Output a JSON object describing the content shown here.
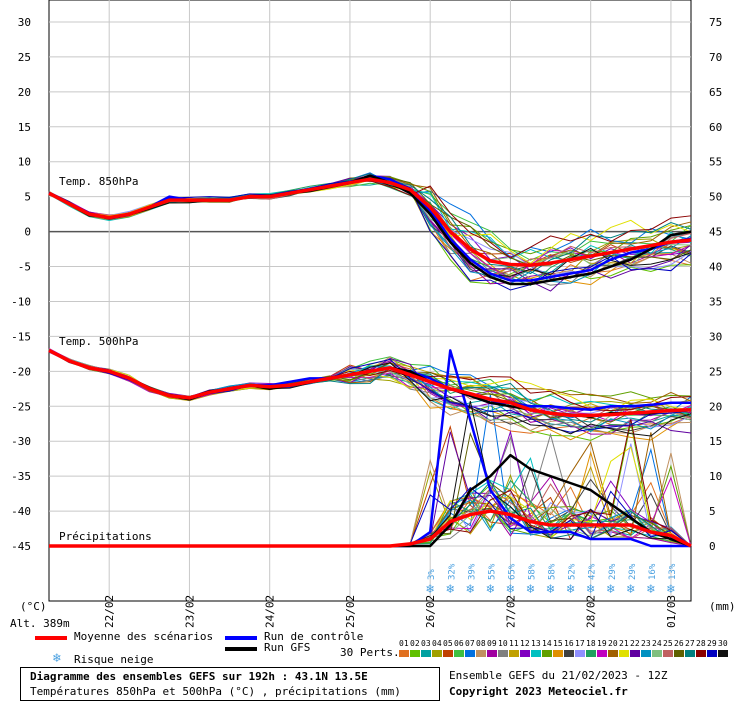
{
  "labels": {
    "temp850": "Temp. 850hPa",
    "temp500": "Temp. 500hPa",
    "precip": "Précipitations",
    "unit_left": "(°C)",
    "unit_right": "(mm)",
    "altitude": "Alt. 389m",
    "perts": "30 Perts."
  },
  "legend": {
    "mean": "Moyenne des scénarios",
    "control": "Run de contrôle",
    "gfs": "Run GFS",
    "snow": "Risque neige",
    "mean_color": "#ff0000",
    "control_color": "#0000ff",
    "gfs_color": "#000000"
  },
  "perturbations": {
    "numbers": [
      "01",
      "02",
      "03",
      "04",
      "05",
      "06",
      "07",
      "08",
      "09",
      "10",
      "11",
      "12",
      "13",
      "14",
      "15",
      "16",
      "17",
      "18",
      "19",
      "20",
      "21",
      "22",
      "23",
      "24",
      "25",
      "26",
      "27",
      "28",
      "29",
      "30"
    ],
    "colors": [
      "#e07020",
      "#60c000",
      "#00a0a0",
      "#a0a000",
      "#c04000",
      "#40c040",
      "#0070e0",
      "#c09060",
      "#a000a0",
      "#808080",
      "#c0a000",
      "#8000c0",
      "#00c0c0",
      "#60a000",
      "#e09000",
      "#404040",
      "#9090ff",
      "#20a060",
      "#c000c0",
      "#a06000",
      "#e0e000",
      "#6000a0",
      "#0090c0",
      "#80c080",
      "#c06060",
      "#606000",
      "#008080",
      "#8b0000",
      "#0000c0",
      "#101010"
    ]
  },
  "footer": {
    "title": "Diagramme des ensembles GEFS sur 192h : 43.1N 13.5E",
    "subtitle": "Températures 850hPa et 500hPa (°C) , précipitations (mm)",
    "run": "Ensemble GEFS du 21/02/2023 - 12Z",
    "copyright": "Copyright 2023 Meteociel.fr"
  },
  "chart_data": {
    "type": "line",
    "x_ticks": [
      "22/02",
      "23/02",
      "24/02",
      "25/02",
      "26/02",
      "27/02",
      "28/02",
      "01/03"
    ],
    "x_tick_hours": [
      18,
      42,
      66,
      90,
      114,
      138,
      162,
      186
    ],
    "x_range_hours": [
      0,
      192
    ],
    "y_left_ticks": [
      30,
      25,
      20,
      15,
      10,
      5,
      0,
      -5,
      -10,
      -15,
      -20,
      -25,
      -30,
      -35,
      -40,
      -45
    ],
    "y_left_range": [
      -45,
      30
    ],
    "y_right_ticks": [
      75,
      70,
      65,
      60,
      55,
      50,
      45,
      40,
      35,
      30,
      25,
      20,
      15,
      10,
      5,
      0
    ],
    "y_right_range": [
      0,
      75
    ],
    "zero_line": 0,
    "hours": [
      0,
      6,
      12,
      18,
      24,
      30,
      36,
      42,
      48,
      54,
      60,
      66,
      72,
      78,
      84,
      90,
      96,
      102,
      108,
      114,
      120,
      126,
      132,
      138,
      144,
      150,
      156,
      162,
      168,
      174,
      180,
      186,
      192
    ],
    "series": [
      {
        "name": "Moyenne des scénarios",
        "group": "t850",
        "values": [
          5.5,
          4,
          2.5,
          2,
          2.5,
          3.5,
          4.5,
          4.5,
          4.5,
          4.5,
          5,
          5,
          5.5,
          6,
          6.5,
          7,
          7.5,
          7,
          6,
          3.5,
          0,
          -2.5,
          -4.2,
          -4.7,
          -4.8,
          -4.5,
          -4,
          -3.5,
          -3,
          -2.5,
          -2,
          -1.5,
          -1.2
        ]
      },
      {
        "name": "Run de contrôle",
        "group": "t850",
        "values": [
          5.5,
          4,
          2.5,
          2,
          2.5,
          3.5,
          5,
          4.5,
          4.5,
          4.5,
          5,
          5,
          5.5,
          6,
          6.5,
          7,
          8,
          7.5,
          6,
          3,
          -1,
          -4,
          -6,
          -7,
          -7,
          -6.5,
          -6,
          -5.5,
          -4,
          -3,
          -2.5,
          -1.5,
          -1
        ]
      },
      {
        "name": "Run GFS",
        "group": "t850",
        "values": [
          5.5,
          4,
          2.5,
          2,
          2.5,
          3.5,
          4.5,
          4.5,
          4.5,
          4.5,
          5,
          5,
          5.5,
          6,
          6.5,
          7,
          8,
          7,
          5.5,
          2.5,
          -1.5,
          -4.5,
          -6.5,
          -7.5,
          -7.5,
          -7,
          -6.5,
          -6,
          -5,
          -4,
          -2.5,
          -0.5,
          0
        ]
      },
      {
        "name": "Moyenne des scénarios",
        "group": "t500",
        "values": [
          -17,
          -18.5,
          -19.5,
          -20,
          -21,
          -22.5,
          -23.5,
          -23.8,
          -23,
          -22.5,
          -22,
          -22.2,
          -22,
          -21.5,
          -21,
          -20.5,
          -20,
          -19.5,
          -20.5,
          -21.5,
          -22.5,
          -23.2,
          -24,
          -24.5,
          -25.5,
          -26,
          -26.3,
          -26.3,
          -26.2,
          -26,
          -25.8,
          -25.6,
          -25.5
        ]
      },
      {
        "name": "Run de contrôle",
        "group": "t500",
        "values": [
          -17,
          -18.5,
          -19.5,
          -20,
          -21,
          -22.5,
          -23.5,
          -24,
          -23,
          -22.5,
          -22,
          -22,
          -21.5,
          -21,
          -21,
          -20.5,
          -20,
          -19.5,
          -20,
          -21,
          -22.5,
          -23.5,
          -24.5,
          -24.5,
          -25,
          -25,
          -25.3,
          -25.5,
          -25,
          -25,
          -24.8,
          -24.5,
          -24.5
        ]
      },
      {
        "name": "Run GFS",
        "group": "t500",
        "values": [
          -17,
          -18.5,
          -19.5,
          -20,
          -21,
          -22.5,
          -23.5,
          -24,
          -23,
          -22.5,
          -22,
          -22.5,
          -22,
          -21.5,
          -21,
          -20.5,
          -20,
          -19.5,
          -20,
          -21.5,
          -22.5,
          -23.5,
          -24.5,
          -25,
          -25.5,
          -26,
          -26.2,
          -26.5,
          -26,
          -26,
          -26,
          -25.5,
          -25.5
        ]
      },
      {
        "name": "Moyenne des scénarios",
        "group": "precip",
        "values": [
          0,
          0,
          0,
          0,
          0,
          0,
          0,
          0,
          0,
          0,
          0,
          0,
          0,
          0,
          0,
          0,
          0,
          0,
          0.3,
          1,
          3.5,
          4.5,
          5,
          4.5,
          3.5,
          3,
          3,
          3,
          3,
          3,
          2,
          1.5,
          0
        ]
      },
      {
        "name": "Run de contrôle",
        "group": "precip",
        "values": [
          0,
          0,
          0,
          0,
          0,
          0,
          0,
          0,
          0,
          0,
          0,
          0,
          0,
          0,
          0,
          0,
          0,
          0,
          0,
          2,
          28,
          18,
          8,
          4,
          2,
          2,
          2,
          1,
          1,
          1,
          0,
          0,
          0
        ]
      },
      {
        "name": "Run GFS",
        "group": "precip",
        "values": [
          0,
          0,
          0,
          0,
          0,
          0,
          0,
          0,
          0,
          0,
          0,
          0,
          0,
          0,
          0,
          0,
          0,
          0,
          0,
          0,
          3,
          8,
          10,
          13,
          11,
          10,
          9,
          8,
          6,
          4,
          2,
          1,
          0
        ]
      }
    ],
    "snow_risk": {
      "hours": [
        114,
        120,
        126,
        132,
        138,
        144,
        150,
        156,
        162,
        168,
        174,
        180,
        186
      ],
      "labels": [
        "3%",
        "32%",
        "39%",
        "55%",
        "65%",
        "58%",
        "58%",
        "52%",
        "42%",
        "29%",
        "29%",
        "16%",
        "13%"
      ]
    }
  }
}
